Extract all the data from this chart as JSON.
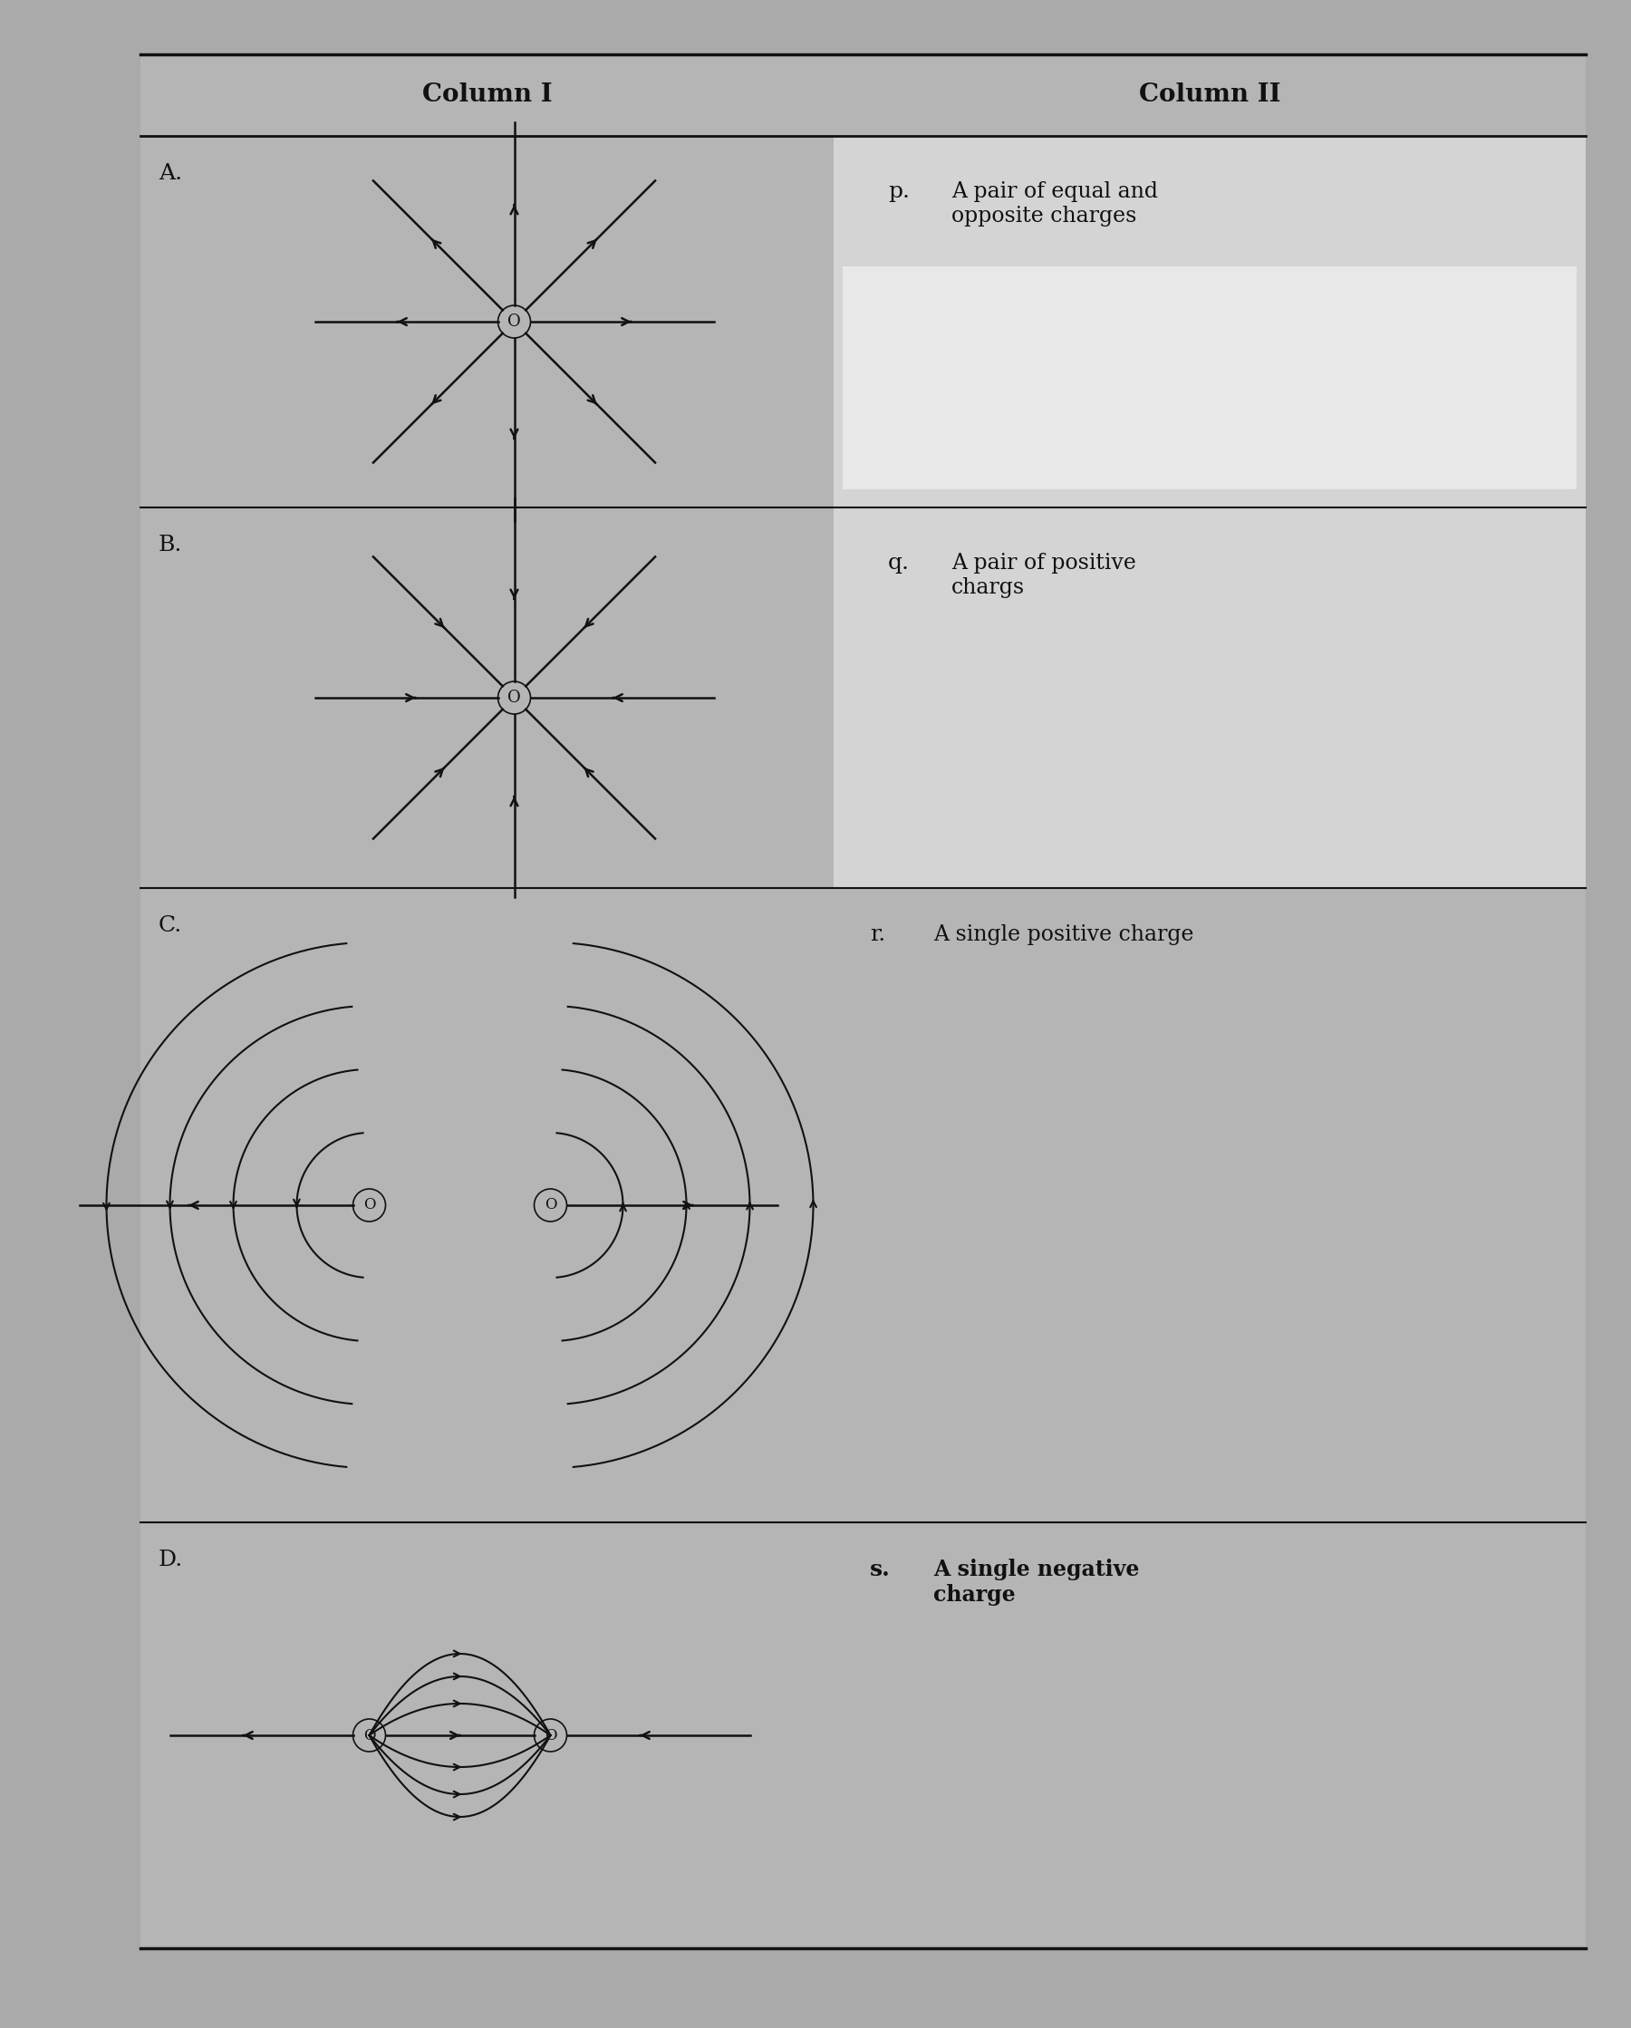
{
  "bg_color": "#aaaaaa",
  "table_bg": "#b8b8b8",
  "col2_bg": "#c8c8c8",
  "white_box_color": "#e0e0e0",
  "line_color": "#111111",
  "text_color": "#111111",
  "title_col1": "Column I",
  "title_col2": "Column II",
  "row_labels": [
    "A.",
    "B.",
    "C.",
    "D."
  ],
  "col2_labels": [
    "p.",
    "q.",
    "r.",
    "s."
  ],
  "col2_texts": [
    "A pair of equal and\nopposite charges",
    "A pair of positive\nchargs",
    "A single positive charge",
    "A single negative\ncharge"
  ],
  "header_fontsize": 20,
  "label_fontsize": 18,
  "col2_fontsize": 17,
  "diagram_col2_fontsize": 17
}
